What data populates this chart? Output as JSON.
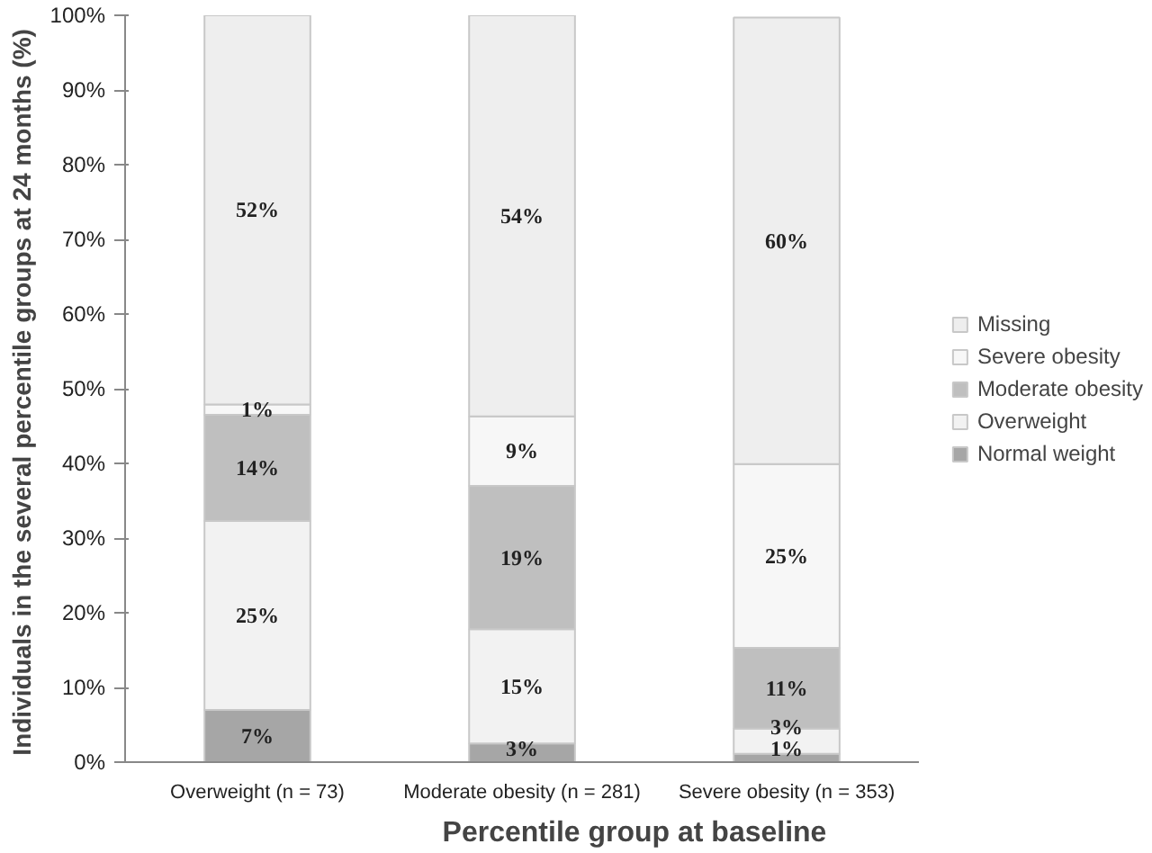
{
  "chart_data": {
    "type": "bar",
    "stacked": true,
    "xlabel": "Percentile group at baseline",
    "ylabel": "Individuals in the several percentile groups at 24 months  (%)",
    "categories": [
      "Overweight (n = 73)",
      "Moderate obesity (n = 281)",
      "Severe obesity (n = 353)"
    ],
    "series": [
      {
        "name": "Normal weight",
        "color": "#a6a6a6",
        "values": [
          7,
          2.5,
          1.1
        ],
        "value_labels": [
          "7%",
          "3%",
          "1%"
        ]
      },
      {
        "name": "Overweight",
        "color": "#f2f2f2",
        "values": [
          25.3,
          15.3,
          3.4
        ],
        "value_labels": [
          "25%",
          "15%",
          "3%"
        ]
      },
      {
        "name": "Moderate obesity",
        "color": "#bfbfbf",
        "values": [
          14.2,
          19.2,
          10.8
        ],
        "value_labels": [
          "14%",
          "19%",
          "11%"
        ]
      },
      {
        "name": "Severe obesity",
        "color": "#f7f7f7",
        "values": [
          1.4,
          9.3,
          24.6
        ],
        "value_labels": [
          "1%",
          "9%",
          "25%"
        ]
      },
      {
        "name": "Missing",
        "color": "#eeeeee",
        "values": [
          52.1,
          53.7,
          59.8
        ],
        "value_labels": [
          "52%",
          "54%",
          "60%"
        ]
      }
    ],
    "ylim": [
      0,
      100
    ],
    "yticks": [
      {
        "value": 0,
        "label": "0%"
      },
      {
        "value": 10,
        "label": "10%"
      },
      {
        "value": 20,
        "label": "20%"
      },
      {
        "value": 30,
        "label": "30%"
      },
      {
        "value": 40,
        "label": "40%"
      },
      {
        "value": 50,
        "label": "50%"
      },
      {
        "value": 60,
        "label": "60%"
      },
      {
        "value": 70,
        "label": "70%"
      },
      {
        "value": 80,
        "label": "80%"
      },
      {
        "value": 90,
        "label": "90%"
      },
      {
        "value": 100,
        "label": "100%"
      }
    ],
    "grid": false,
    "legend": "right"
  }
}
